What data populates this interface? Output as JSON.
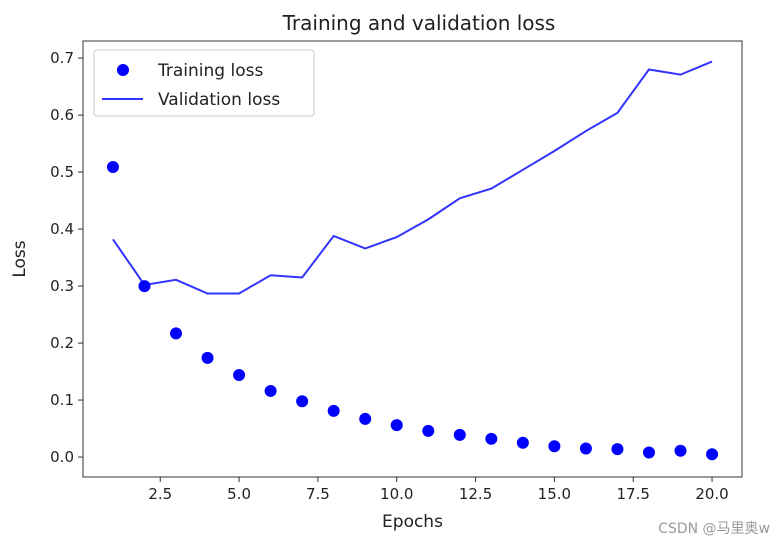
{
  "chart_data": {
    "type": "line",
    "title": "Training and validation loss",
    "xlabel": "Epochs",
    "ylabel": "Loss",
    "xlim": [
      0.05,
      20.95
    ],
    "ylim": [
      -0.035,
      0.73
    ],
    "xticks": [
      2.5,
      5.0,
      7.5,
      10.0,
      12.5,
      15.0,
      17.5,
      20.0
    ],
    "xtick_labels": [
      "2.5",
      "5.0",
      "7.5",
      "10.0",
      "12.5",
      "15.0",
      "17.5",
      "20.0"
    ],
    "yticks": [
      0.0,
      0.1,
      0.2,
      0.3,
      0.4,
      0.5,
      0.6,
      0.7
    ],
    "ytick_labels": [
      "0.0",
      "0.1",
      "0.2",
      "0.3",
      "0.4",
      "0.5",
      "0.6",
      "0.7"
    ],
    "x": [
      1,
      2,
      3,
      4,
      5,
      6,
      7,
      8,
      9,
      10,
      11,
      12,
      13,
      14,
      15,
      16,
      17,
      18,
      19,
      20
    ],
    "series": [
      {
        "name": "Training loss",
        "style": "points",
        "color": "#0000ff",
        "values": [
          0.509,
          0.3,
          0.217,
          0.174,
          0.144,
          0.116,
          0.098,
          0.081,
          0.067,
          0.056,
          0.046,
          0.039,
          0.032,
          0.025,
          0.019,
          0.015,
          0.014,
          0.008,
          0.011,
          0.005
        ]
      },
      {
        "name": "Validation loss",
        "style": "line",
        "color": "#3333ff",
        "values": [
          0.382,
          0.302,
          0.311,
          0.287,
          0.287,
          0.319,
          0.315,
          0.388,
          0.366,
          0.386,
          0.417,
          0.454,
          0.471,
          0.504,
          0.537,
          0.572,
          0.604,
          0.68,
          0.671,
          0.694
        ]
      }
    ],
    "legend": {
      "placement": "top-left",
      "entries": [
        "Training loss",
        "Validation loss"
      ]
    }
  },
  "watermark": "CSDN @马里奥w"
}
